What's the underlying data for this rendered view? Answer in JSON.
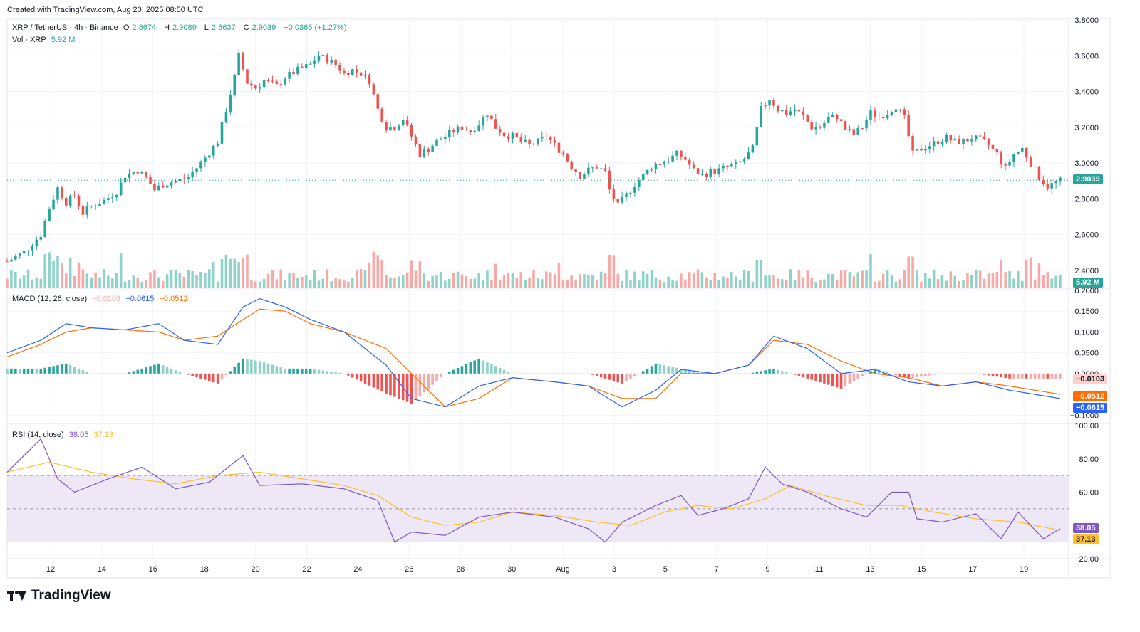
{
  "caption": "Created with TradingView.com, Aug 20, 2025 08:50 UTC",
  "brand": "TradingView",
  "legend_main": {
    "symbol": "XRP / TetherUS · 4h · Binance",
    "o_label": "O",
    "o": "2.8674",
    "h_label": "H",
    "h": "2.9089",
    "l_label": "L",
    "l": "2.8637",
    "c_label": "C",
    "c": "2.9039",
    "chg": "+0.0365 (+1.27%)"
  },
  "legend_vol": {
    "label": "Vol · XRP",
    "value": "5.92 M"
  },
  "legend_macd": {
    "label": "MACD (12, 26, close)",
    "hist": "−0.0103",
    "macd": "−0.0615",
    "signal": "−0.0512"
  },
  "legend_rsi": {
    "label": "RSI (14, close)",
    "rsi": "38.05",
    "ma": "37.13"
  },
  "colors": {
    "up": "#26a69a",
    "down": "#ef5350",
    "up_vol": "#8dd3c7",
    "down_vol": "#f7a9a7",
    "macd": "#2962ff",
    "signal": "#ff6d00",
    "rsi": "#7e57c2",
    "rsi_ma": "#fbc02d",
    "rsi_band": "#ede7f6",
    "grid": "#f0f3fa"
  },
  "price_tags": {
    "last": "2.9039",
    "vol": "5.92 M",
    "hist": "−0.0103",
    "signal": "−0.0512",
    "macd": "−0.0615",
    "rsi": "38.05",
    "rsi_ma": "37.13"
  },
  "chart_data": [
    {
      "type": "candlestick",
      "title": "XRP / TetherUS · 4h · Binance",
      "x_ticks": [
        "12",
        "14",
        "16",
        "18",
        "20",
        "22",
        "24",
        "26",
        "28",
        "30",
        "Aug",
        "3",
        "5",
        "7",
        "9",
        "11",
        "13",
        "15",
        "17",
        "19"
      ],
      "y_ticks": [
        "3.8000",
        "3.6000",
        "3.4000",
        "3.2000",
        "3.0000",
        "2.8000",
        "2.6000",
        "2.4000"
      ],
      "ylim": [
        2.3,
        3.8
      ],
      "close_path": [
        [
          0,
          2.45
        ],
        [
          4,
          2.5
        ],
        [
          8,
          2.6
        ],
        [
          10,
          2.75
        ],
        [
          12,
          2.86
        ],
        [
          14,
          2.78
        ],
        [
          16,
          2.82
        ],
        [
          18,
          2.72
        ],
        [
          20,
          2.76
        ],
        [
          23,
          2.79
        ],
        [
          26,
          2.84
        ],
        [
          28,
          2.93
        ],
        [
          31,
          2.96
        ],
        [
          33,
          2.92
        ],
        [
          35,
          2.85
        ],
        [
          37,
          2.88
        ],
        [
          40,
          2.9
        ],
        [
          43,
          2.92
        ],
        [
          46,
          3.0
        ],
        [
          50,
          3.12
        ],
        [
          52,
          3.3
        ],
        [
          54,
          3.48
        ],
        [
          55,
          3.6
        ],
        [
          57,
          3.45
        ],
        [
          59,
          3.42
        ],
        [
          61,
          3.46
        ],
        [
          64,
          3.43
        ],
        [
          66,
          3.48
        ],
        [
          69,
          3.52
        ],
        [
          72,
          3.55
        ],
        [
          74,
          3.6
        ],
        [
          76,
          3.58
        ],
        [
          78,
          3.55
        ],
        [
          80,
          3.5
        ],
        [
          82,
          3.52
        ],
        [
          84,
          3.5
        ],
        [
          86,
          3.46
        ],
        [
          88,
          3.3
        ],
        [
          90,
          3.2
        ],
        [
          92,
          3.2
        ],
        [
          94,
          3.25
        ],
        [
          96,
          3.15
        ],
        [
          98,
          3.05
        ],
        [
          100,
          3.08
        ],
        [
          102,
          3.12
        ],
        [
          104,
          3.15
        ],
        [
          106,
          3.18
        ],
        [
          108,
          3.2
        ],
        [
          110,
          3.18
        ],
        [
          112,
          3.22
        ],
        [
          114,
          3.28
        ],
        [
          116,
          3.2
        ],
        [
          118,
          3.16
        ],
        [
          120,
          3.15
        ],
        [
          122,
          3.12
        ],
        [
          124,
          3.1
        ],
        [
          126,
          3.12
        ],
        [
          128,
          3.15
        ],
        [
          130,
          3.1
        ],
        [
          132,
          3.05
        ],
        [
          134,
          2.98
        ],
        [
          136,
          2.93
        ],
        [
          138,
          2.96
        ],
        [
          140,
          2.98
        ],
        [
          142,
          2.95
        ],
        [
          143,
          2.85
        ],
        [
          145,
          2.76
        ],
        [
          147,
          2.82
        ],
        [
          149,
          2.88
        ],
        [
          151,
          2.93
        ],
        [
          153,
          2.98
        ],
        [
          155,
          3.0
        ],
        [
          157,
          3.02
        ],
        [
          159,
          3.05
        ],
        [
          161,
          3.02
        ],
        [
          163,
          2.96
        ],
        [
          165,
          2.93
        ],
        [
          167,
          2.95
        ],
        [
          169,
          2.96
        ],
        [
          171,
          2.98
        ],
        [
          173,
          2.99
        ],
        [
          175,
          3.02
        ],
        [
          177,
          3.08
        ],
        [
          179,
          3.3
        ],
        [
          181,
          3.36
        ],
        [
          183,
          3.3
        ],
        [
          185,
          3.28
        ],
        [
          187,
          3.3
        ],
        [
          189,
          3.26
        ],
        [
          191,
          3.2
        ],
        [
          193,
          3.2
        ],
        [
          195,
          3.25
        ],
        [
          197,
          3.26
        ],
        [
          199,
          3.19
        ],
        [
          201,
          3.16
        ],
        [
          203,
          3.2
        ],
        [
          205,
          3.28
        ],
        [
          207,
          3.26
        ],
        [
          209,
          3.28
        ],
        [
          211,
          3.32
        ],
        [
          213,
          3.25
        ],
        [
          215,
          3.05
        ],
        [
          217,
          3.08
        ],
        [
          219,
          3.1
        ],
        [
          221,
          3.12
        ],
        [
          223,
          3.14
        ],
        [
          225,
          3.12
        ],
        [
          227,
          3.12
        ],
        [
          229,
          3.14
        ],
        [
          231,
          3.13
        ],
        [
          233,
          3.1
        ],
        [
          235,
          3.05
        ],
        [
          237,
          2.97
        ],
        [
          239,
          3.05
        ],
        [
          241,
          3.08
        ],
        [
          243,
          3.0
        ],
        [
          245,
          2.92
        ],
        [
          247,
          2.87
        ],
        [
          249,
          2.89
        ],
        [
          250,
          2.9
        ]
      ]
    },
    {
      "type": "bar",
      "title": "Vol · XRP",
      "note": "volume histogram drawn in main pane"
    },
    {
      "type": "line",
      "title": "MACD (12, 26, close)",
      "y_ticks": [
        "0.2000",
        "0.1500",
        "0.1000",
        "0.0500",
        "0.0000",
        "−0.1000"
      ],
      "ylim": [
        -0.12,
        0.2
      ],
      "series": [
        {
          "name": "MACD",
          "points": [
            [
              0,
              0.05
            ],
            [
              8,
              0.08
            ],
            [
              14,
              0.12
            ],
            [
              20,
              0.11
            ],
            [
              28,
              0.105
            ],
            [
              36,
              0.12
            ],
            [
              42,
              0.08
            ],
            [
              50,
              0.07
            ],
            [
              56,
              0.16
            ],
            [
              60,
              0.18
            ],
            [
              66,
              0.16
            ],
            [
              72,
              0.13
            ],
            [
              80,
              0.1
            ],
            [
              90,
              0.02
            ],
            [
              96,
              -0.06
            ],
            [
              104,
              -0.08
            ],
            [
              112,
              -0.03
            ],
            [
              120,
              -0.01
            ],
            [
              130,
              -0.02
            ],
            [
              138,
              -0.03
            ],
            [
              146,
              -0.08
            ],
            [
              154,
              -0.04
            ],
            [
              160,
              0.01
            ],
            [
              168,
              0.0
            ],
            [
              176,
              0.02
            ],
            [
              182,
              0.09
            ],
            [
              190,
              0.06
            ],
            [
              198,
              0.0
            ],
            [
              206,
              0.01
            ],
            [
              214,
              -0.02
            ],
            [
              222,
              -0.03
            ],
            [
              230,
              -0.02
            ],
            [
              238,
              -0.04
            ],
            [
              250,
              -0.06
            ]
          ]
        },
        {
          "name": "Signal",
          "points": [
            [
              0,
              0.04
            ],
            [
              8,
              0.07
            ],
            [
              14,
              0.1
            ],
            [
              20,
              0.11
            ],
            [
              28,
              0.105
            ],
            [
              36,
              0.1
            ],
            [
              42,
              0.08
            ],
            [
              50,
              0.09
            ],
            [
              56,
              0.13
            ],
            [
              60,
              0.155
            ],
            [
              66,
              0.15
            ],
            [
              72,
              0.12
            ],
            [
              80,
              0.1
            ],
            [
              90,
              0.06
            ],
            [
              96,
              0.0
            ],
            [
              104,
              -0.08
            ],
            [
              112,
              -0.06
            ],
            [
              120,
              -0.01
            ],
            [
              130,
              -0.02
            ],
            [
              138,
              -0.03
            ],
            [
              146,
              -0.06
            ],
            [
              154,
              -0.06
            ],
            [
              160,
              0.0
            ],
            [
              168,
              0.0
            ],
            [
              176,
              0.02
            ],
            [
              182,
              0.08
            ],
            [
              190,
              0.07
            ],
            [
              198,
              0.03
            ],
            [
              206,
              0.0
            ],
            [
              214,
              -0.01
            ],
            [
              222,
              -0.03
            ],
            [
              230,
              -0.02
            ],
            [
              238,
              -0.03
            ],
            [
              250,
              -0.05
            ]
          ]
        }
      ]
    },
    {
      "type": "line",
      "title": "RSI (14, close)",
      "y_ticks": [
        "100.00",
        "80.00",
        "60.00",
        "38.05",
        "37.13",
        "20.00"
      ],
      "ylim": [
        20,
        100
      ],
      "bands": [
        30,
        50,
        70
      ],
      "series": [
        {
          "name": "RSI",
          "points": [
            [
              0,
              72
            ],
            [
              8,
              92
            ],
            [
              12,
              68
            ],
            [
              16,
              60
            ],
            [
              24,
              68
            ],
            [
              32,
              75
            ],
            [
              40,
              62
            ],
            [
              48,
              66
            ],
            [
              56,
              82
            ],
            [
              60,
              64
            ],
            [
              70,
              65
            ],
            [
              80,
              62
            ],
            [
              88,
              55
            ],
            [
              92,
              30
            ],
            [
              96,
              36
            ],
            [
              104,
              34
            ],
            [
              112,
              45
            ],
            [
              120,
              48
            ],
            [
              130,
              45
            ],
            [
              138,
              38
            ],
            [
              142,
              30
            ],
            [
              146,
              42
            ],
            [
              154,
              52
            ],
            [
              160,
              58
            ],
            [
              164,
              46
            ],
            [
              170,
              50
            ],
            [
              176,
              56
            ],
            [
              180,
              75
            ],
            [
              184,
              65
            ],
            [
              190,
              60
            ],
            [
              198,
              50
            ],
            [
              204,
              45
            ],
            [
              210,
              60
            ],
            [
              214,
              60
            ],
            [
              216,
              44
            ],
            [
              222,
              42
            ],
            [
              230,
              47
            ],
            [
              236,
              32
            ],
            [
              240,
              48
            ],
            [
              246,
              32
            ],
            [
              250,
              38
            ]
          ]
        },
        {
          "name": "MA",
          "points": [
            [
              0,
              72
            ],
            [
              10,
              78
            ],
            [
              20,
              72
            ],
            [
              30,
              68
            ],
            [
              40,
              65
            ],
            [
              50,
              70
            ],
            [
              60,
              72
            ],
            [
              70,
              68
            ],
            [
              80,
              64
            ],
            [
              88,
              58
            ],
            [
              96,
              45
            ],
            [
              104,
              40
            ],
            [
              112,
              42
            ],
            [
              120,
              48
            ],
            [
              130,
              46
            ],
            [
              140,
              42
            ],
            [
              148,
              40
            ],
            [
              156,
              48
            ],
            [
              164,
              52
            ],
            [
              172,
              50
            ],
            [
              180,
              56
            ],
            [
              186,
              64
            ],
            [
              194,
              58
            ],
            [
              204,
              52
            ],
            [
              212,
              52
            ],
            [
              220,
              48
            ],
            [
              230,
              44
            ],
            [
              240,
              42
            ],
            [
              250,
              37
            ]
          ]
        }
      ]
    }
  ]
}
